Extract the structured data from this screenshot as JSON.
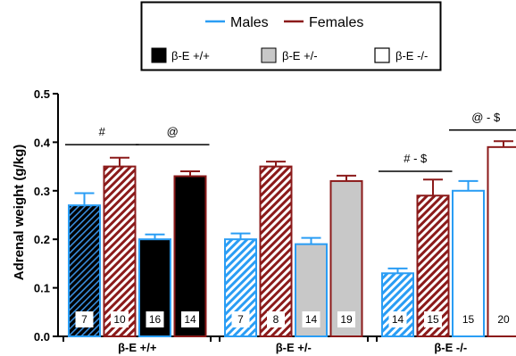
{
  "chart_data": {
    "type": "bar",
    "ylabel": "Adrenal weight (g/kg)",
    "ylim": [
      0,
      0.5
    ],
    "yticks": [
      "0.0",
      "0.1",
      "0.2",
      "0.3",
      "0.4",
      "0.5"
    ],
    "group_labels": [
      "β-E +/+",
      "β-E +/-",
      "β-E -/-"
    ],
    "legend": {
      "sex": [
        {
          "name": "Males",
          "color": "#2a9df4"
        },
        {
          "name": "Females",
          "color": "#8b1a1a"
        }
      ],
      "genotype": [
        {
          "name": "β-E +/+",
          "fill": "#000000"
        },
        {
          "name": "β-E +/-",
          "fill": "#c8c8c8"
        },
        {
          "name": "β-E -/-",
          "fill": "#ffffff"
        }
      ]
    },
    "bars": [
      {
        "group": 0,
        "sex": "Males",
        "pattern": "hatch",
        "value": 0.27,
        "error": 0.025,
        "n": "7"
      },
      {
        "group": 0,
        "sex": "Females",
        "pattern": "hatch",
        "value": 0.35,
        "error": 0.018,
        "n": "10"
      },
      {
        "group": 0,
        "sex": "Males",
        "pattern": "solid",
        "value": 0.2,
        "error": 0.01,
        "n": "16"
      },
      {
        "group": 0,
        "sex": "Females",
        "pattern": "solid",
        "value": 0.33,
        "error": 0.01,
        "n": "14"
      },
      {
        "group": 1,
        "sex": "Males",
        "pattern": "hatch",
        "value": 0.2,
        "error": 0.012,
        "n": "7"
      },
      {
        "group": 1,
        "sex": "Females",
        "pattern": "hatch",
        "value": 0.35,
        "error": 0.01,
        "n": "8"
      },
      {
        "group": 1,
        "sex": "Males",
        "pattern": "solid",
        "value": 0.19,
        "error": 0.013,
        "n": "14"
      },
      {
        "group": 1,
        "sex": "Females",
        "pattern": "solid",
        "value": 0.32,
        "error": 0.011,
        "n": "19"
      },
      {
        "group": 2,
        "sex": "Males",
        "pattern": "hatch",
        "value": 0.13,
        "error": 0.01,
        "n": "14"
      },
      {
        "group": 2,
        "sex": "Females",
        "pattern": "hatch",
        "value": 0.29,
        "error": 0.033,
        "n": "15"
      },
      {
        "group": 2,
        "sex": "Males",
        "pattern": "solid",
        "value": 0.3,
        "error": 0.02,
        "n": "15"
      },
      {
        "group": 2,
        "sex": "Females",
        "pattern": "solid",
        "value": 0.39,
        "error": 0.012,
        "n": "20"
      }
    ],
    "annotations": [
      {
        "text": "#",
        "from_bar": 0,
        "to_bar": 1,
        "y": 0.395
      },
      {
        "text": "@",
        "from_bar": 2,
        "to_bar": 3,
        "y": 0.395
      },
      {
        "text": "# - $",
        "from_bar": 8,
        "to_bar": 9,
        "y": 0.34
      },
      {
        "text": "@ - $",
        "from_bar": 10,
        "to_bar": 11,
        "y": 0.425
      }
    ]
  }
}
